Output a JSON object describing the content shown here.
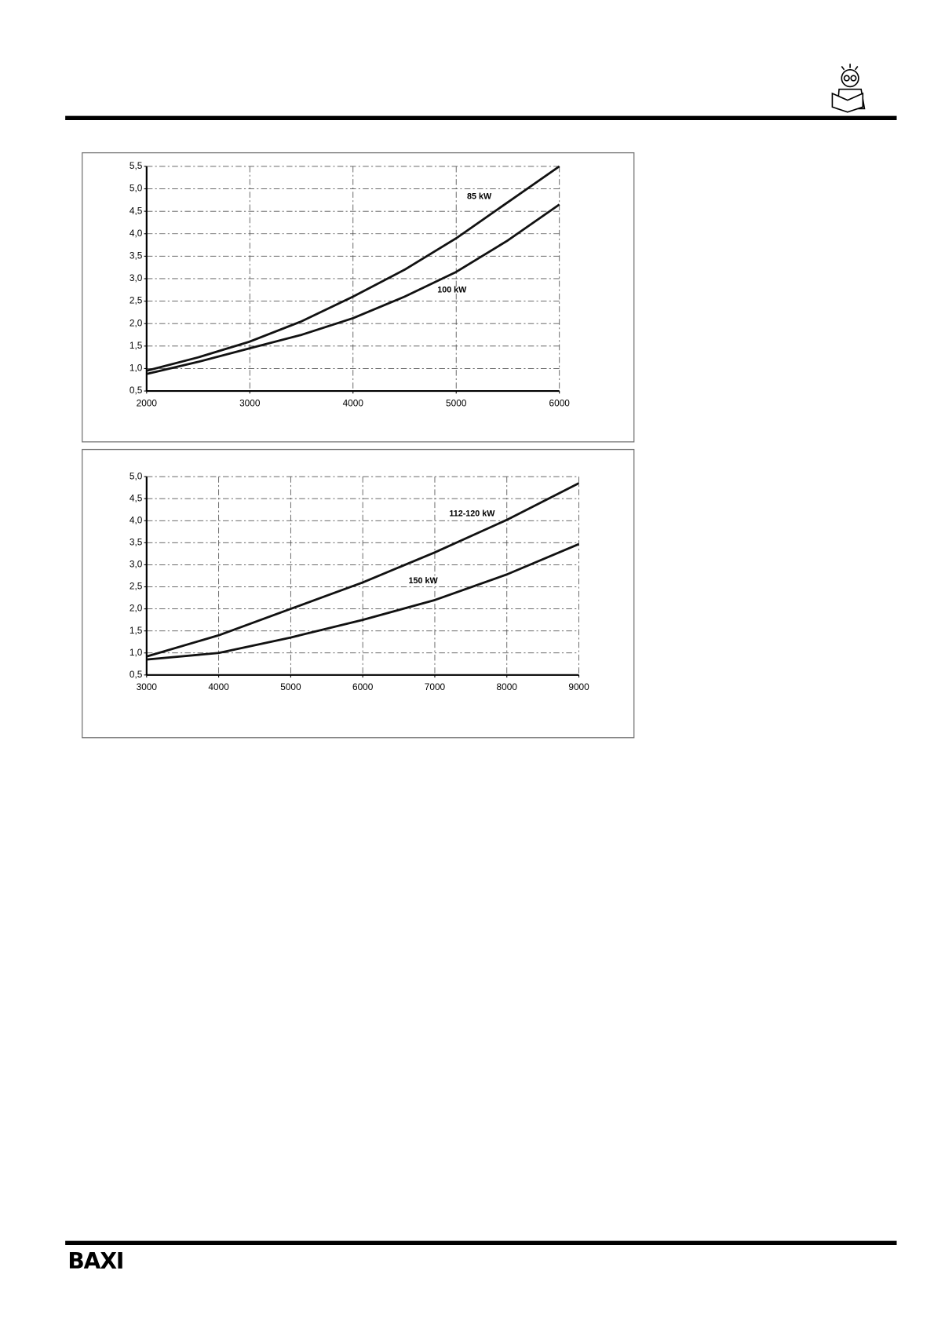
{
  "chart_data": [
    {
      "type": "line",
      "x": [
        2000,
        2500,
        3000,
        3500,
        4000,
        4500,
        5000,
        5500,
        6000
      ],
      "series": [
        {
          "name": "85 kW",
          "color": "#111111",
          "values": [
            0.95,
            1.25,
            1.6,
            2.05,
            2.6,
            3.2,
            3.9,
            4.7,
            5.5
          ]
        },
        {
          "name": "100 kW",
          "color": "#111111",
          "values": [
            0.88,
            1.15,
            1.45,
            1.75,
            2.12,
            2.6,
            3.15,
            3.85,
            4.65
          ]
        }
      ],
      "xlim": [
        2000,
        6000
      ],
      "xticks": [
        2000,
        3000,
        4000,
        5000,
        6000
      ],
      "ylim": [
        0.5,
        5.5
      ],
      "yticks": [
        {
          "value": 0.5,
          "label": "0,5"
        },
        {
          "value": 1.0,
          "label": "1,0"
        },
        {
          "value": 1.5,
          "label": "1,5"
        },
        {
          "value": 2.0,
          "label": "2,0"
        },
        {
          "value": 2.5,
          "label": "2,5"
        },
        {
          "value": 3.0,
          "label": "3,0"
        },
        {
          "value": 3.5,
          "label": "3,5"
        },
        {
          "value": 4.0,
          "label": "4,0"
        },
        {
          "value": 4.5,
          "label": "4,5"
        },
        {
          "value": 5.0,
          "label": "5,0"
        },
        {
          "value": 5.5,
          "label": "5,5"
        }
      ],
      "grid": true
    },
    {
      "type": "line",
      "x": [
        3000,
        4000,
        5000,
        6000,
        7000,
        8000,
        9000
      ],
      "series": [
        {
          "name": "112-120 kW",
          "color": "#111111",
          "values": [
            0.92,
            1.4,
            2.0,
            2.6,
            3.28,
            4.02,
            4.85
          ]
        },
        {
          "name": "150 kW",
          "color": "#111111",
          "values": [
            0.85,
            1.0,
            1.35,
            1.75,
            2.2,
            2.78,
            3.47
          ]
        }
      ],
      "xlim": [
        3000,
        9000
      ],
      "xticks": [
        3000,
        4000,
        5000,
        6000,
        7000,
        8000,
        9000
      ],
      "ylim": [
        0.5,
        5.0
      ],
      "yticks": [
        {
          "value": 0.5,
          "label": "0,5"
        },
        {
          "value": 1.0,
          "label": "1,0"
        },
        {
          "value": 1.5,
          "label": "1,5"
        },
        {
          "value": 2.0,
          "label": "2,0"
        },
        {
          "value": 2.5,
          "label": "2,5"
        },
        {
          "value": 3.0,
          "label": "3,0"
        },
        {
          "value": 3.5,
          "label": "3,5"
        },
        {
          "value": 4.0,
          "label": "4,0"
        },
        {
          "value": 4.5,
          "label": "4,5"
        },
        {
          "value": 5.0,
          "label": "5,0"
        }
      ],
      "grid": true
    }
  ],
  "footer": {
    "logo": "BAXI"
  }
}
